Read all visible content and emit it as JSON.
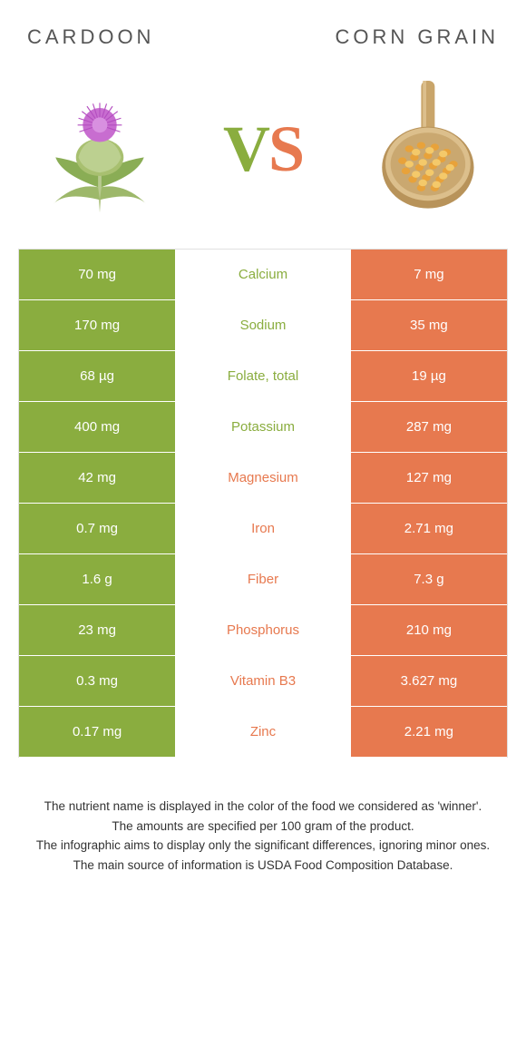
{
  "titles": {
    "left": "CARDOON",
    "right": "CORN GRAIN"
  },
  "vs": {
    "v": "V",
    "s": "S"
  },
  "colors": {
    "green": "#8aad3f",
    "orange": "#e7794f",
    "border": "#e0e0e0",
    "bg": "#ffffff"
  },
  "rows": [
    {
      "left": "70 mg",
      "label": "Calcium",
      "winner": "green",
      "right": "7 mg"
    },
    {
      "left": "170 mg",
      "label": "Sodium",
      "winner": "green",
      "right": "35 mg"
    },
    {
      "left": "68 µg",
      "label": "Folate, total",
      "winner": "green",
      "right": "19 µg"
    },
    {
      "left": "400 mg",
      "label": "Potassium",
      "winner": "green",
      "right": "287 mg"
    },
    {
      "left": "42 mg",
      "label": "Magnesium",
      "winner": "orange",
      "right": "127 mg"
    },
    {
      "left": "0.7 mg",
      "label": "Iron",
      "winner": "orange",
      "right": "2.71 mg"
    },
    {
      "left": "1.6 g",
      "label": "Fiber",
      "winner": "orange",
      "right": "7.3 g"
    },
    {
      "left": "23 mg",
      "label": "Phosphorus",
      "winner": "orange",
      "right": "210 mg"
    },
    {
      "left": "0.3 mg",
      "label": "Vitamin B3",
      "winner": "orange",
      "right": "3.627 mg"
    },
    {
      "left": "0.17 mg",
      "label": "Zinc",
      "winner": "orange",
      "right": "2.21 mg"
    }
  ],
  "footer": {
    "line1": "The nutrient name is displayed in the color of the food we considered as 'winner'.",
    "line2": "The amounts are specified per 100 gram of the product.",
    "line3": "The infographic aims to display only the significant differences, ignoring minor ones.",
    "line4": "The main source of information is USDA Food Composition Database."
  }
}
